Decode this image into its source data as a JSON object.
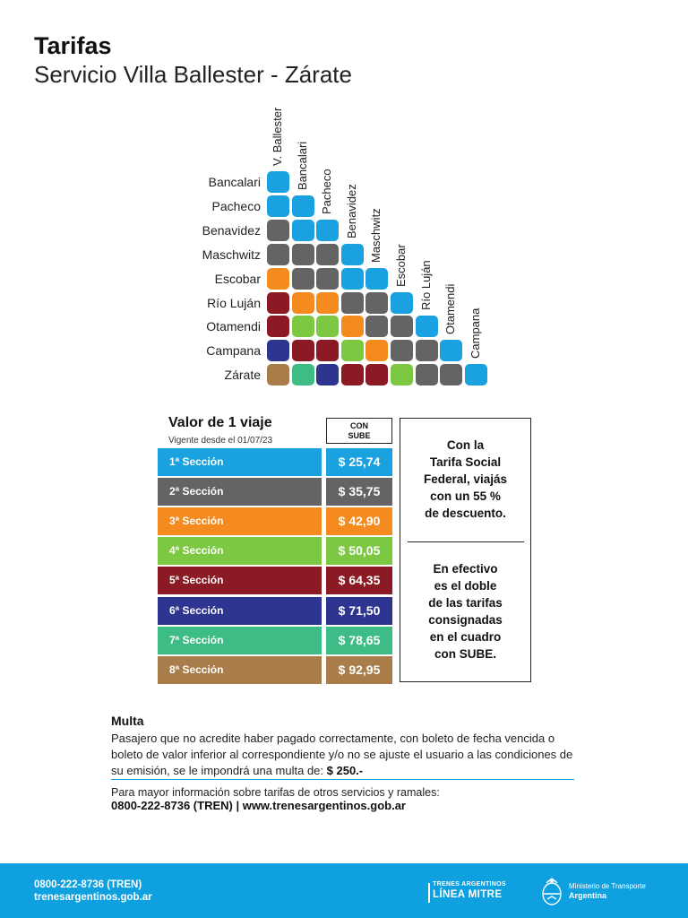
{
  "header": {
    "title": "Tarifas",
    "subtitle": "Servicio Villa Ballester - Zárate"
  },
  "matrix": {
    "columns": [
      "V. Ballester",
      "Bancalari",
      "Pacheco",
      "Benavidez",
      "Maschwitz",
      "Escobar",
      "Río Luján",
      "Otamendi",
      "Campana"
    ],
    "rows": [
      {
        "station": "Bancalari",
        "sections": [
          1
        ]
      },
      {
        "station": "Pacheco",
        "sections": [
          1,
          1
        ]
      },
      {
        "station": "Benavidez",
        "sections": [
          2,
          1,
          1
        ]
      },
      {
        "station": "Maschwitz",
        "sections": [
          2,
          2,
          2,
          1
        ]
      },
      {
        "station": "Escobar",
        "sections": [
          3,
          2,
          2,
          1,
          1
        ]
      },
      {
        "station": "Río Luján",
        "sections": [
          5,
          3,
          3,
          2,
          2,
          1
        ]
      },
      {
        "station": "Otamendi",
        "sections": [
          5,
          4,
          4,
          3,
          2,
          2,
          1
        ]
      },
      {
        "station": "Campana",
        "sections": [
          6,
          5,
          5,
          4,
          3,
          2,
          2,
          1
        ]
      },
      {
        "station": "Zárate",
        "sections": [
          8,
          7,
          6,
          5,
          5,
          4,
          2,
          2,
          1
        ]
      }
    ]
  },
  "fares": {
    "title": "Valor de 1 viaje",
    "valid_from": "Vigente desde el 01/07/23",
    "col_header_1": "CON",
    "col_header_2": "SUBE",
    "sections": [
      {
        "label": "1ª Sección",
        "price": "$ 25,74",
        "color": "#1aa1df"
      },
      {
        "label": "2ª Sección",
        "price": "$ 35,75",
        "color": "#646464"
      },
      {
        "label": "3ª Sección",
        "price": "$ 42,90",
        "color": "#f58a1f"
      },
      {
        "label": "4ª Sección",
        "price": "$ 50,05",
        "color": "#7dc843"
      },
      {
        "label": "5ª Sección",
        "price": "$ 64,35",
        "color": "#8b1a25"
      },
      {
        "label": "6ª Sección",
        "price": "$ 71,50",
        "color": "#2e3590"
      },
      {
        "label": "7ª Sección",
        "price": "$ 78,65",
        "color": "#3dbd85"
      },
      {
        "label": "8ª Sección",
        "price": "$ 92,95",
        "color": "#a97d4a"
      }
    ]
  },
  "info": {
    "social_lines": [
      "Con la",
      "Tarifa Social",
      "Federal, viajás",
      "con un 55 %",
      "de descuento."
    ],
    "cash_lines": [
      "En efectivo",
      "es el doble",
      "de las tarifas",
      "consignadas",
      "en el cuadro",
      "con SUBE."
    ]
  },
  "multa": {
    "title": "Multa",
    "text": "Pasajero que no acredite haber pagado correctamente, con boleto de fecha vencida o boleto de valor inferior al correspondiente y/o no se ajuste el usuario a las condiciones de su emisión, se le impondrá una multa de:",
    "amount": "$ 250.-"
  },
  "more_info": {
    "text": "Para mayor información sobre tarifas de otros servicios y ramales:",
    "contact": "0800-222-8736 (TREN) | www.trenesargentinos.gob.ar"
  },
  "footer": {
    "phone": "0800-222-8736 (TREN)",
    "web": "trenesargentinos.gob.ar",
    "brand_top": "TRENES ARGENTINOS",
    "brand_line": "LÍNEA MITRE",
    "ministry": "Ministerio de Transporte",
    "country": "Argentina",
    "background": "#0fa0df"
  }
}
